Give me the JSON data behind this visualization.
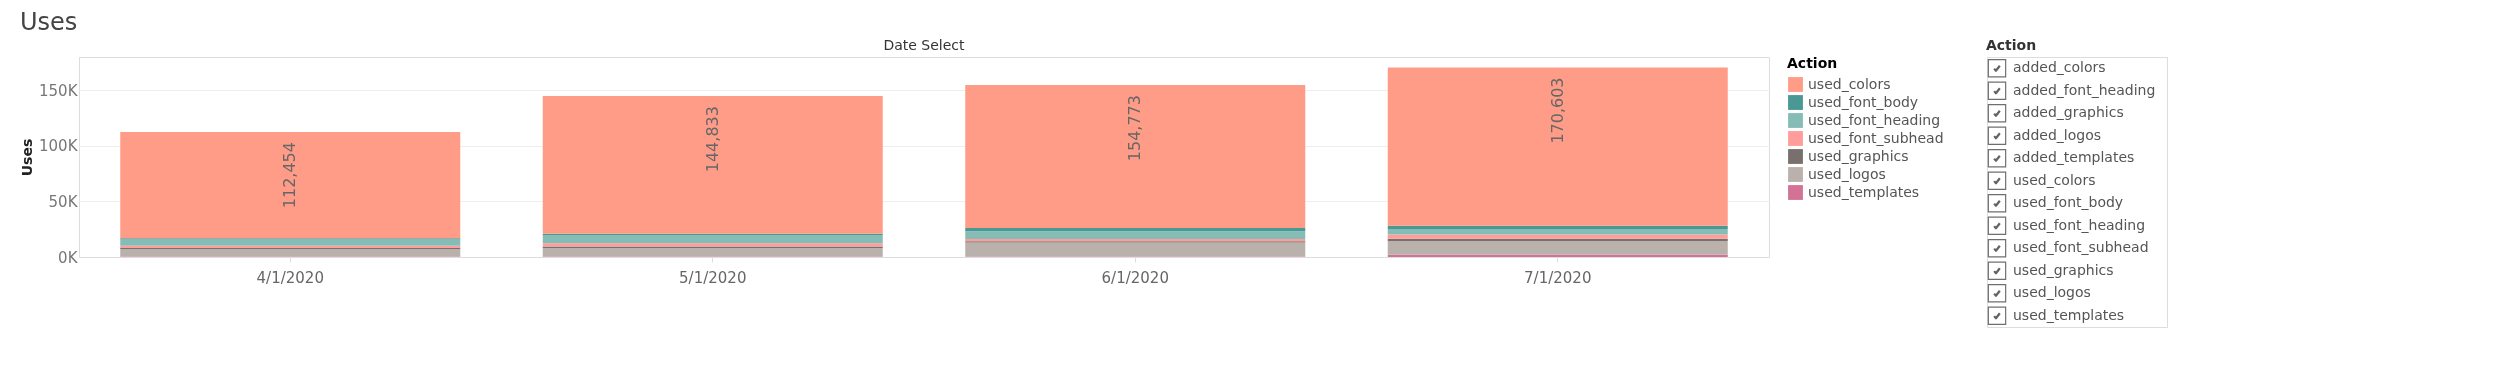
{
  "chart_data": [
    {
      "type": "bar",
      "title": "Uses",
      "subtitle": "Date Select",
      "ylabel": "Uses",
      "legend_title": "Action",
      "stacked": true,
      "legend": "right",
      "grid": "y",
      "categories": [
        "4/1/2020",
        "5/1/2020",
        "6/1/2020",
        "7/1/2020"
      ],
      "series": [
        {
          "name": "used_templates",
          "color": "#d37295",
          "values": [
            500,
            500,
            500,
            2000
          ]
        },
        {
          "name": "used_logos",
          "color": "#bab0ac",
          "values": [
            6500,
            7500,
            12500,
            12500
          ]
        },
        {
          "name": "used_graphics",
          "color": "#79706e",
          "values": [
            1200,
            1500,
            1200,
            2000
          ]
        },
        {
          "name": "used_font_subhead",
          "color": "#ff9d9a",
          "values": [
            2000,
            2800,
            2000,
            3800
          ]
        },
        {
          "name": "used_font_heading",
          "color": "#86bcb6",
          "values": [
            5500,
            7500,
            7000,
            5000
          ]
        },
        {
          "name": "used_font_body",
          "color": "#499894",
          "values": [
            1200,
            1200,
            2800,
            2800
          ]
        },
        {
          "name": "used_colors",
          "color": "#ff9c88",
          "values": [
            95554,
            123833,
            128773,
            142503
          ]
        }
      ],
      "totals": [
        "112,454",
        "144,833",
        "154,773",
        "170,603"
      ],
      "ylim": [
        0,
        180000
      ],
      "yticks": [
        {
          "value": 0,
          "label": "0K"
        },
        {
          "value": 50000,
          "label": "50K"
        },
        {
          "value": 100000,
          "label": "100K"
        },
        {
          "value": 150000,
          "label": "150K"
        }
      ]
    },
    {
      "type": "other",
      "title": "Action",
      "annotations": [
        "added_colors",
        "added_font_heading",
        "added_graphics",
        "added_logos",
        "added_templates",
        "used_colors",
        "used_font_body",
        "used_font_heading",
        "used_font_subhead",
        "used_graphics",
        "used_logos",
        "used_templates"
      ]
    }
  ]
}
